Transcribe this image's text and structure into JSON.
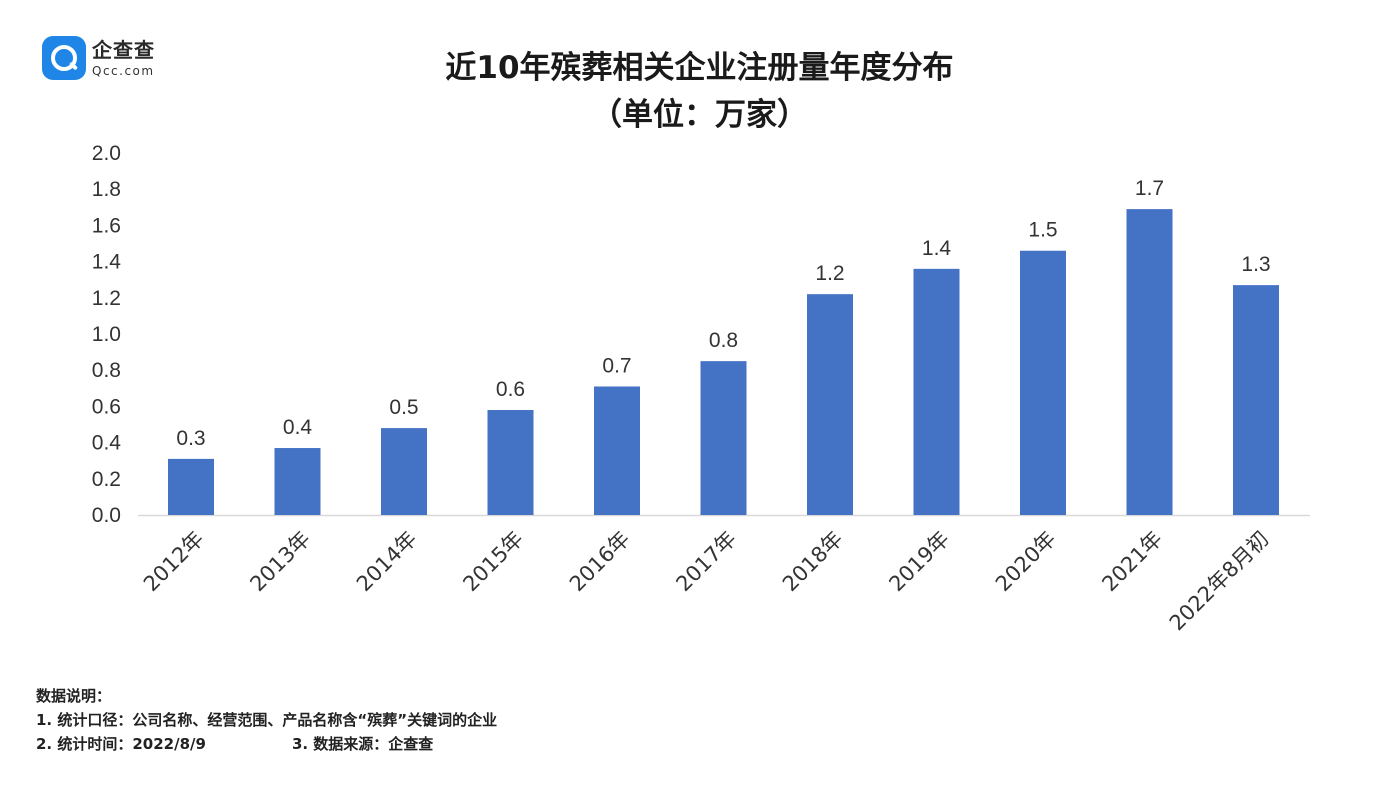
{
  "logo": {
    "name_cn": "企查查",
    "domain": "Qcc.com"
  },
  "chart_data": {
    "type": "bar",
    "title": "近10年殡葬相关企业注册量年度分布",
    "subtitle": "（单位：万家）",
    "xlabel": "",
    "ylabel": "",
    "categories": [
      "2012年",
      "2013年",
      "2014年",
      "2015年",
      "2016年",
      "2017年",
      "2018年",
      "2019年",
      "2020年",
      "2021年",
      "2022年8月初"
    ],
    "values": [
      0.31,
      0.37,
      0.48,
      0.58,
      0.71,
      0.85,
      1.22,
      1.36,
      1.46,
      1.69,
      1.27
    ],
    "data_labels": [
      "0.3",
      "0.4",
      "0.5",
      "0.6",
      "0.7",
      "0.8",
      "1.2",
      "1.4",
      "1.5",
      "1.7",
      "1.3"
    ],
    "yticks": [
      "0.0",
      "0.2",
      "0.4",
      "0.6",
      "0.8",
      "1.0",
      "1.2",
      "1.4",
      "1.6",
      "1.8",
      "2.0"
    ],
    "ylim": [
      0,
      2.0
    ],
    "grid": false,
    "legend": "none",
    "bar_color": "#4472c4"
  },
  "notes": {
    "heading": "数据说明：",
    "line1": "1. 统计口径：公司名称、经营范围、产品名称含“殡葬”关键词的企业",
    "line2a": "2. 统计时间：2022/8/9",
    "line2b": "3. 数据来源：企查查"
  }
}
